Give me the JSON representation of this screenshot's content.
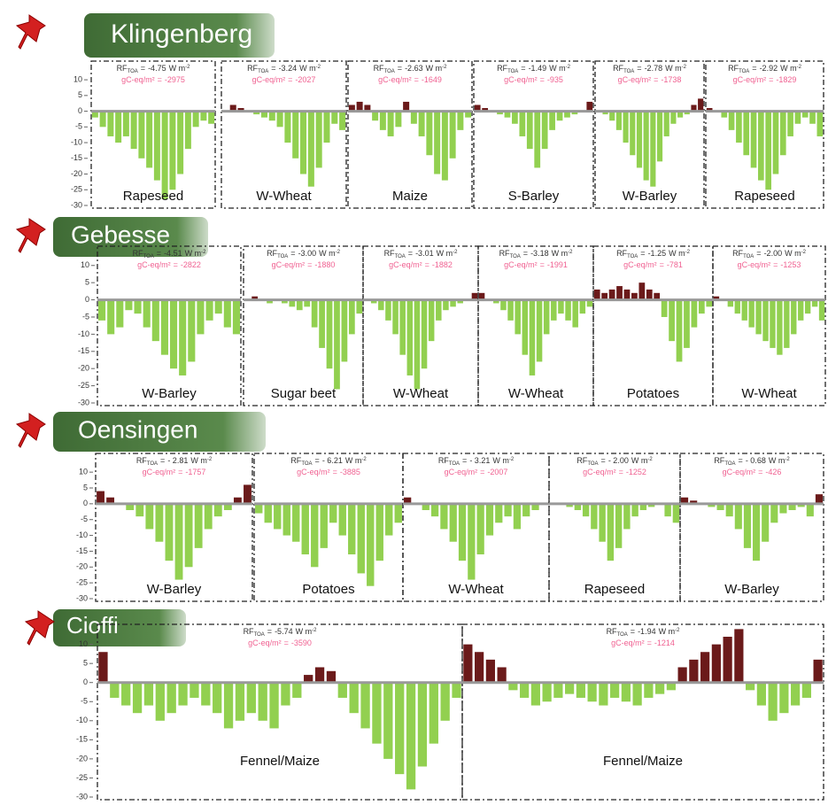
{
  "chart_data": {
    "type": "bar",
    "rf_prefix": "RF",
    "rf_sub": "TOA",
    "eq": "=",
    "rf_unit": "W m",
    "rf_exp": "-2",
    "gc_prefix": "gC-eq/m²",
    "pos_color": "#6b1a1a",
    "neg_color": "#92d050",
    "ylim": [
      -30,
      12
    ],
    "yticks": [
      10,
      5,
      0,
      -5,
      -10,
      -15,
      -20,
      -25,
      -30
    ],
    "sites": [
      {
        "name": "Klingenberg",
        "panels": [
          {
            "rf": -4.75,
            "gc": -2975,
            "crop": "Rapeseed",
            "values": [
              -2,
              -5,
              -8,
              -10,
              -8,
              -12,
              -15,
              -18,
              -22,
              -28,
              -25,
              -20,
              -12,
              -5,
              -3,
              -4
            ]
          },
          {
            "rf": -3.24,
            "gc": -2027,
            "crop": "W-Wheat",
            "values": [
              0,
              2,
              1,
              0,
              -1,
              -2,
              -3,
              -5,
              -10,
              -15,
              -20,
              -24,
              -18,
              -10,
              -4,
              -6
            ]
          },
          {
            "rf": -2.63,
            "gc": -1649,
            "crop": "Maize",
            "values": [
              2,
              3,
              2,
              -3,
              -6,
              -8,
              -5,
              3,
              -4,
              -8,
              -14,
              -20,
              -22,
              -15,
              -6,
              -2
            ]
          },
          {
            "rf": -1.49,
            "gc": -935,
            "crop": "S-Barley",
            "values": [
              2,
              1,
              0,
              -1,
              -2,
              -4,
              -8,
              -12,
              -18,
              -12,
              -6,
              -3,
              -2,
              -1,
              0,
              3
            ]
          },
          {
            "rf": -2.78,
            "gc": -1738,
            "crop": "W-Barley",
            "values": [
              0,
              -1,
              -3,
              -6,
              -10,
              -14,
              -18,
              -22,
              -24,
              -16,
              -8,
              -4,
              -2,
              -1,
              2,
              4
            ]
          },
          {
            "rf": -2.92,
            "gc": -1829,
            "crop": "Rapeseed",
            "values": [
              1,
              0,
              -2,
              -6,
              -10,
              -14,
              -18,
              -22,
              -25,
              -20,
              -14,
              -8,
              -4,
              -2,
              -4,
              -8
            ]
          }
        ]
      },
      {
        "name": "Gebesse",
        "panels": [
          {
            "rf": -4.51,
            "gc": -2822,
            "crop": "W-Barley",
            "values": [
              -6,
              -10,
              -8,
              -3,
              -4,
              -8,
              -12,
              -16,
              -20,
              -22,
              -18,
              -10,
              -6,
              -4,
              -8,
              -10
            ]
          },
          {
            "rf": {
              "value": -3,
              "label": "-3.00"
            },
            "gc": -1880,
            "crop": "Sugar beet",
            "values": [
              0,
              1,
              0,
              -1,
              0,
              -1,
              -2,
              -3,
              -2,
              -8,
              -14,
              -20,
              -26,
              -18,
              -10,
              -4
            ]
          },
          {
            "rf": -3.01,
            "gc": -1882,
            "crop": "W-Wheat",
            "values": [
              0,
              -1,
              -3,
              -6,
              -10,
              -16,
              -22,
              -26,
              -20,
              -12,
              -6,
              -3,
              -2,
              -1,
              0,
              2
            ]
          },
          {
            "rf": -3.18,
            "gc": -1991,
            "crop": "W-Wheat",
            "values": [
              2,
              0,
              -1,
              -3,
              -6,
              -10,
              -16,
              -22,
              -18,
              -10,
              -6,
              -4,
              -6,
              -8,
              -4,
              -2
            ]
          },
          {
            "rf": -1.25,
            "gc": -781,
            "crop": "Potatoes",
            "values": [
              3,
              2,
              3,
              4,
              3,
              2,
              5,
              3,
              2,
              -5,
              -12,
              -18,
              -14,
              -8,
              -4,
              -2
            ]
          },
          {
            "rf": {
              "value": -2,
              "label": "-2.00"
            },
            "gc": -1253,
            "crop": "W-Wheat",
            "values": [
              1,
              0,
              -2,
              -4,
              -6,
              -8,
              -10,
              -12,
              -14,
              -16,
              -14,
              -10,
              -6,
              -4,
              -2,
              -6
            ]
          }
        ]
      },
      {
        "name": "Oensingen",
        "panels": [
          {
            "rf": {
              "value": -2.81,
              "label": "- 2.81"
            },
            "gc": -1757,
            "crop": "W-Barley",
            "values": [
              4,
              2,
              0,
              -2,
              -4,
              -8,
              -12,
              -18,
              -24,
              -20,
              -14,
              -8,
              -4,
              -2,
              2,
              6
            ]
          },
          {
            "rf": {
              "value": -6.21,
              "label": "- 6.21"
            },
            "gc": -3885,
            "crop": "Potatoes",
            "values": [
              -3,
              -6,
              -8,
              -10,
              -12,
              -16,
              -20,
              -14,
              -6,
              -10,
              -16,
              -22,
              -26,
              -18,
              -10,
              -6
            ]
          },
          {
            "rf": {
              "value": -3.21,
              "label": "- 3.21"
            },
            "gc": -2007,
            "crop": "W-Wheat",
            "values": [
              2,
              0,
              -2,
              -4,
              -8,
              -12,
              -18,
              -24,
              -16,
              -10,
              -6,
              -4,
              -8,
              -4,
              -2,
              0
            ]
          },
          {
            "rf": {
              "value": -2,
              "label": "- 2.00"
            },
            "gc": -1252,
            "crop": "Rapeseed",
            "values": [
              0,
              0,
              -1,
              -2,
              -4,
              -8,
              -12,
              -18,
              -14,
              -8,
              -4,
              -2,
              -1,
              0,
              -4,
              -6
            ]
          },
          {
            "rf": {
              "value": -0.68,
              "label": "- 0.68"
            },
            "gc": -426,
            "crop": "W-Barley",
            "values": [
              2,
              1,
              0,
              -1,
              -2,
              -4,
              -8,
              -14,
              -18,
              -12,
              -6,
              -3,
              -2,
              -1,
              -4,
              3
            ]
          }
        ]
      },
      {
        "name": "Cioffi",
        "panels": [
          {
            "rf": -5.74,
            "gc": -3590,
            "crop": "Fennel/Maize",
            "values": [
              8,
              -4,
              -6,
              -8,
              -6,
              -10,
              -8,
              -6,
              -4,
              -6,
              -8,
              -12,
              -10,
              -8,
              -10,
              -12,
              -6,
              -4,
              2,
              4,
              3,
              -4,
              -8,
              -12,
              -16,
              -20,
              -24,
              -28,
              -22,
              -16,
              -10,
              -4
            ]
          },
          {
            "rf": -1.94,
            "gc": -1214,
            "crop": "Fennel/Maize",
            "values": [
              10,
              8,
              6,
              4,
              -2,
              -4,
              -6,
              -5,
              -4,
              -3,
              -4,
              -5,
              -6,
              -4,
              -5,
              -6,
              -4,
              -3,
              -2,
              4,
              6,
              8,
              10,
              12,
              14,
              -2,
              -6,
              -10,
              -8,
              -6,
              -4,
              6
            ]
          }
        ]
      }
    ]
  }
}
